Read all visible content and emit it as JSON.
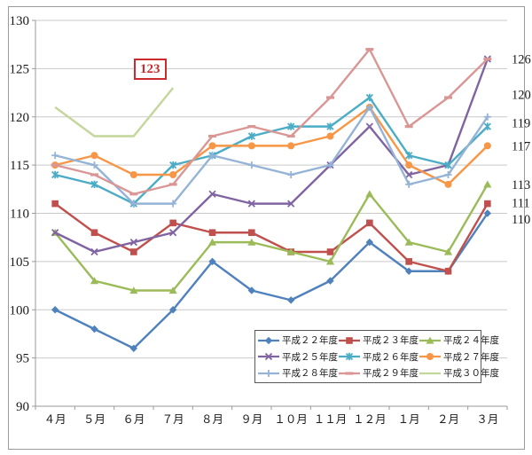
{
  "annotation": {
    "text": "123"
  },
  "chart_data": {
    "type": "line",
    "title": "",
    "xlabel": "",
    "ylabel": "",
    "grid": true,
    "legend_position": "inside-bottom-right",
    "categories": [
      "４月",
      "５月",
      "６月",
      "７月",
      "８月",
      "９月",
      "１０月",
      "１１月",
      "１２月",
      "１月",
      "２月",
      "３月"
    ],
    "y_axis": {
      "min": 90,
      "max": 130,
      "step": 5
    },
    "series": [
      {
        "name": "平成２２年度",
        "color": "#4F81BD",
        "marker": "diamond",
        "values": [
          100,
          98,
          96,
          100,
          105,
          102,
          101,
          103,
          107,
          104,
          104,
          110
        ]
      },
      {
        "name": "平成２３年度",
        "color": "#C0504D",
        "marker": "square",
        "values": [
          111,
          108,
          106,
          109,
          108,
          108,
          106,
          106,
          109,
          105,
          104,
          111
        ]
      },
      {
        "name": "平成２４年度",
        "color": "#9BBB59",
        "marker": "triangle",
        "values": [
          108,
          103,
          102,
          102,
          107,
          107,
          106,
          105,
          112,
          107,
          106,
          113
        ]
      },
      {
        "name": "平成２５年度",
        "color": "#8064A2",
        "marker": "x",
        "values": [
          108,
          106,
          107,
          108,
          112,
          111,
          111,
          115,
          119,
          114,
          115,
          126
        ]
      },
      {
        "name": "平成２６年度",
        "color": "#4BACC6",
        "marker": "star",
        "values": [
          114,
          113,
          111,
          115,
          116,
          118,
          119,
          119,
          122,
          116,
          115,
          119
        ]
      },
      {
        "name": "平成２７年度",
        "color": "#F79646",
        "marker": "circle",
        "values": [
          115,
          116,
          114,
          114,
          117,
          117,
          117,
          118,
          121,
          115,
          113,
          117
        ]
      },
      {
        "name": "平成２８年度",
        "color": "#95B3D7",
        "marker": "plus",
        "values": [
          116,
          115,
          111,
          111,
          116,
          115,
          114,
          115,
          121,
          113,
          114,
          120
        ]
      },
      {
        "name": "平成２９年度",
        "color": "#D99694",
        "marker": "dash",
        "values": [
          115,
          114,
          112,
          113,
          118,
          119,
          118,
          122,
          127,
          119,
          122,
          126
        ]
      },
      {
        "name": "平成３０年度",
        "color": "#C3D69B",
        "marker": "none",
        "values": [
          121,
          118,
          118,
          123,
          null,
          null,
          null,
          null,
          null,
          null,
          null,
          null
        ]
      }
    ],
    "end_labels": [
      {
        "text": "126",
        "at": 126
      },
      {
        "text": "120",
        "at": 122.3
      },
      {
        "text": "119",
        "at": 119.4
      },
      {
        "text": "117",
        "at": 117
      },
      {
        "text": "113",
        "at": 113
      },
      {
        "text": "111",
        "at": 111.1
      },
      {
        "text": "110",
        "at": 109.4
      }
    ]
  }
}
